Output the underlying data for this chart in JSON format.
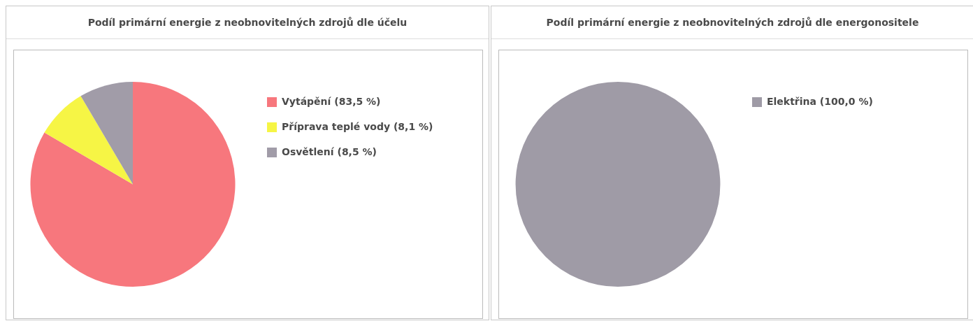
{
  "chart_data": [
    {
      "type": "pie",
      "title": "Podíl primární energie z neobnovitelných zdrojů dle účelu",
      "categories": [
        "Vytápění (83,5 %)",
        "Příprava teplé vody (8,1 %)",
        "Osvětlení (8,5 %)"
      ],
      "values": [
        83.5,
        8.1,
        8.5
      ],
      "colors": [
        "#f7777d",
        "#f6f545",
        "#a19ca8"
      ],
      "legend": "top right"
    },
    {
      "type": "pie",
      "title": "Podíl primární energie z neobnovitelných zdrojů dle energonositele",
      "categories": [
        "Elektřina (100,0 %)"
      ],
      "values": [
        100
      ],
      "colors": [
        "#9f9ba6"
      ],
      "legend": "top right"
    }
  ]
}
